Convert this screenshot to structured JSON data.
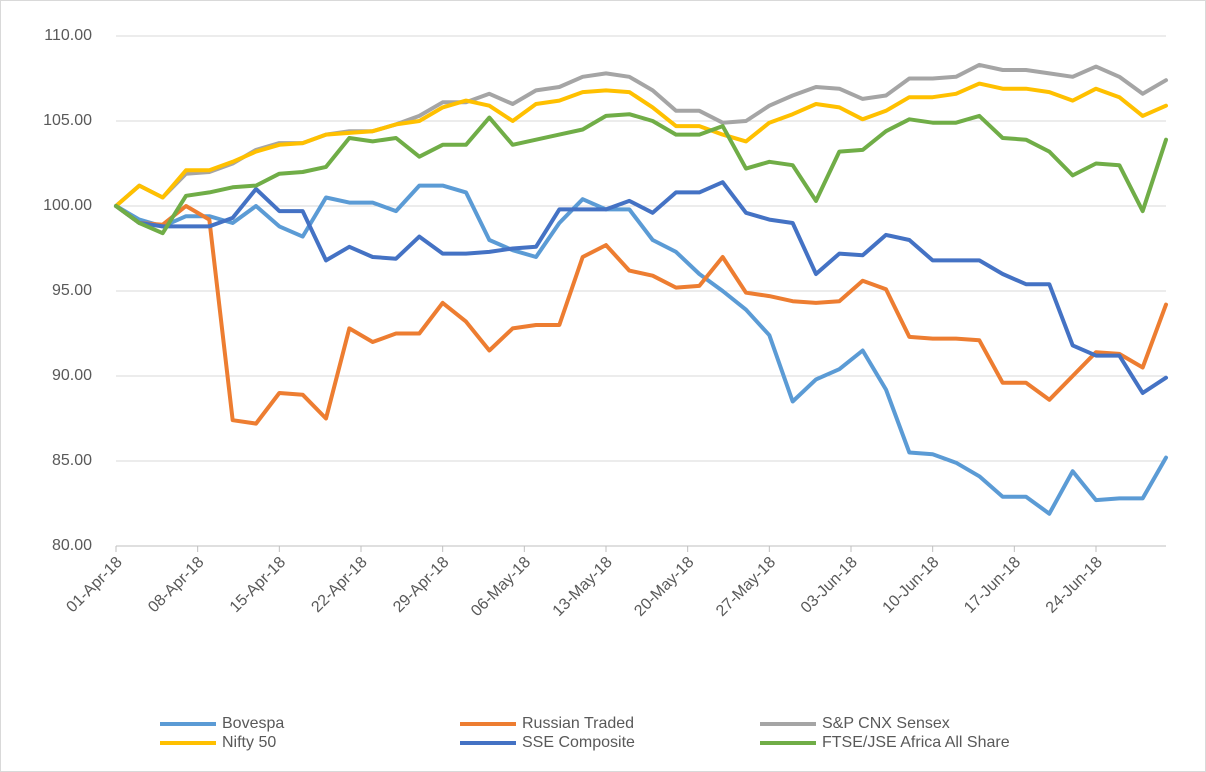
{
  "chart_data": {
    "type": "line",
    "x": [
      "01-Apr-18",
      "03-Apr-18",
      "05-Apr-18",
      "07-Apr-18",
      "09-Apr-18",
      "11-Apr-18",
      "13-Apr-18",
      "15-Apr-18",
      "17-Apr-18",
      "19-Apr-18",
      "21-Apr-18",
      "23-Apr-18",
      "25-Apr-18",
      "27-Apr-18",
      "29-Apr-18",
      "01-May-18",
      "03-May-18",
      "05-May-18",
      "07-May-18",
      "09-May-18",
      "11-May-18",
      "13-May-18",
      "15-May-18",
      "17-May-18",
      "19-May-18",
      "21-May-18",
      "23-May-18",
      "25-May-18",
      "27-May-18",
      "29-May-18",
      "31-May-18",
      "02-Jun-18",
      "04-Jun-18",
      "06-Jun-18",
      "08-Jun-18",
      "10-Jun-18",
      "12-Jun-18",
      "14-Jun-18",
      "16-Jun-18",
      "18-Jun-18",
      "20-Jun-18",
      "22-Jun-18",
      "24-Jun-18",
      "26-Jun-18",
      "28-Jun-18",
      "30-Jun-18"
    ],
    "xlim": [
      "01-Apr-18",
      "30-Jun-18"
    ],
    "xticks": [
      "01-Apr-18",
      "08-Apr-18",
      "15-Apr-18",
      "22-Apr-18",
      "29-Apr-18",
      "06-May-18",
      "13-May-18",
      "20-May-18",
      "27-May-18",
      "03-Jun-18",
      "10-Jun-18",
      "17-Jun-18",
      "24-Jun-18"
    ],
    "ylim": [
      80,
      110
    ],
    "yticks": [
      {
        "value": 80,
        "label": "80.00"
      },
      {
        "value": 85,
        "label": "85.00"
      },
      {
        "value": 90,
        "label": "90.00"
      },
      {
        "value": 95,
        "label": "95.00"
      },
      {
        "value": 100,
        "label": "100.00"
      },
      {
        "value": 105,
        "label": "105.00"
      },
      {
        "value": 110,
        "label": "110.00"
      }
    ],
    "grid": true,
    "legend": "bottom",
    "series": [
      {
        "name": "Bovespa",
        "color": "#5b9bd5",
        "values": [
          100,
          99.2,
          98.8,
          99.4,
          99.4,
          99,
          100,
          98.8,
          98.2,
          100.5,
          100.2,
          100.2,
          99.7,
          101.2,
          101.2,
          100.8,
          98,
          97.4,
          97,
          99,
          100.4,
          99.8,
          99.8,
          98,
          97.3,
          96,
          95,
          93.9,
          92.4,
          88.5,
          89.8,
          90.4,
          91.5,
          89.2,
          85.5,
          85.4,
          84.9,
          84.1,
          82.9,
          82.9,
          81.9,
          84.4,
          82.7,
          82.8,
          82.8,
          85.2
        ]
      },
      {
        "name": "Russian Traded",
        "color": "#ed7d31",
        "values": [
          100,
          99,
          98.9,
          100,
          99.2,
          87.4,
          87.2,
          89,
          88.9,
          87.5,
          92.8,
          92,
          92.5,
          92.5,
          94.3,
          93.2,
          91.5,
          92.8,
          93,
          93,
          97,
          97.7,
          96.2,
          95.9,
          95.2,
          95.3,
          97,
          94.9,
          94.7,
          94.4,
          94.3,
          94.4,
          95.6,
          95.1,
          92.3,
          92.2,
          92.2,
          92.1,
          89.6,
          89.6,
          88.6,
          90,
          91.4,
          91.3,
          90.5,
          94.2
        ]
      },
      {
        "name": "S&P CNX Sensex",
        "color": "#a5a5a5",
        "values": [
          100,
          101.2,
          100.5,
          101.9,
          102,
          102.5,
          103.3,
          103.7,
          103.7,
          104.2,
          104.4,
          104.4,
          104.8,
          105.3,
          106.1,
          106.1,
          106.6,
          106,
          106.8,
          107,
          107.6,
          107.8,
          107.6,
          106.8,
          105.6,
          105.6,
          104.9,
          105,
          105.9,
          106.5,
          107,
          106.9,
          106.3,
          106.5,
          107.5,
          107.5,
          107.6,
          108.3,
          108,
          108,
          107.8,
          107.6,
          108.2,
          107.6,
          106.6,
          107.4
        ]
      },
      {
        "name": "Nifty 50",
        "color": "#ffc000",
        "values": [
          100,
          101.2,
          100.5,
          102.1,
          102.1,
          102.6,
          103.2,
          103.6,
          103.7,
          104.2,
          104.3,
          104.4,
          104.8,
          105,
          105.8,
          106.2,
          105.9,
          105,
          106,
          106.2,
          106.7,
          106.8,
          106.7,
          105.8,
          104.7,
          104.7,
          104.2,
          103.8,
          104.9,
          105.4,
          106,
          105.8,
          105.1,
          105.6,
          106.4,
          106.4,
          106.6,
          107.2,
          106.9,
          106.9,
          106.7,
          106.2,
          106.9,
          106.4,
          105.3,
          105.9
        ]
      },
      {
        "name": "SSE Composite",
        "color": "#4472c4",
        "values": [
          100,
          99,
          98.8,
          98.8,
          98.8,
          99.3,
          101,
          99.7,
          99.7,
          96.8,
          97.6,
          97,
          96.9,
          98.2,
          97.2,
          97.2,
          97.3,
          97.5,
          97.6,
          99.8,
          99.8,
          99.8,
          100.3,
          99.6,
          100.8,
          100.8,
          101.4,
          99.6,
          99.2,
          99,
          96,
          97.2,
          97.1,
          98.3,
          98,
          96.8,
          96.8,
          96.8,
          96,
          95.4,
          95.4,
          91.8,
          91.2,
          91.2,
          89,
          89.9
        ]
      },
      {
        "name": "FTSE/JSE Africa All Share",
        "color": "#70ad47",
        "values": [
          100,
          99,
          98.4,
          100.6,
          100.8,
          101.1,
          101.2,
          101.9,
          102,
          102.3,
          104,
          103.8,
          104,
          102.9,
          103.6,
          103.6,
          105.2,
          103.6,
          103.9,
          104.2,
          104.5,
          105.3,
          105.4,
          105,
          104.2,
          104.2,
          104.7,
          102.2,
          102.6,
          102.4,
          100.3,
          103.2,
          103.3,
          104.4,
          105.1,
          104.9,
          104.9,
          105.3,
          104,
          103.9,
          103.2,
          101.8,
          102.5,
          102.4,
          99.7,
          103.9
        ]
      }
    ]
  }
}
